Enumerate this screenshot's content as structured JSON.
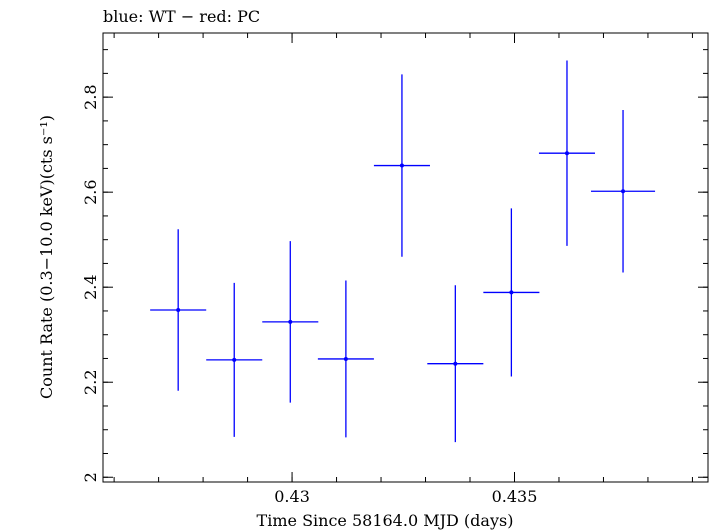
{
  "chart_data": {
    "type": "scatter",
    "title": "blue: WT − red: PC",
    "xlabel": "Time Since 58164.0 MJD (days)",
    "ylabel": "Count Rate (0.3−10.0 keV)(cts s⁻¹)",
    "xlim": [
      0.42575,
      0.43935
    ],
    "ylim": [
      1.99,
      2.935
    ],
    "xticks": [
      {
        "value": 0.43,
        "label": "0.43"
      },
      {
        "value": 0.435,
        "label": "0.435"
      }
    ],
    "yticks": [
      {
        "value": 2.0,
        "label": "2"
      },
      {
        "value": 2.2,
        "label": "2.2"
      },
      {
        "value": 2.4,
        "label": "2.4"
      },
      {
        "value": 2.6,
        "label": "2.6"
      },
      {
        "value": 2.8,
        "label": "2.8"
      }
    ],
    "x_minor_step": 0.001,
    "y_minor_step": 0.05,
    "grid": false,
    "series": [
      {
        "color": "#0000ff",
        "points": [
          {
            "x": 0.42744,
            "xerr": 0.00063,
            "y": 2.352,
            "yerr": 0.17
          },
          {
            "x": 0.4287,
            "xerr": 0.00063,
            "y": 2.247,
            "yerr": 0.162
          },
          {
            "x": 0.42996,
            "xerr": 0.00063,
            "y": 2.327,
            "yerr": 0.17
          },
          {
            "x": 0.43121,
            "xerr": 0.00063,
            "y": 2.249,
            "yerr": 0.165
          },
          {
            "x": 0.43247,
            "xerr": 0.00063,
            "y": 2.656,
            "yerr": 0.192
          },
          {
            "x": 0.43367,
            "xerr": 0.00063,
            "y": 2.239,
            "yerr": 0.165
          },
          {
            "x": 0.43493,
            "xerr": 0.00063,
            "y": 2.389,
            "yerr": 0.177
          },
          {
            "x": 0.43618,
            "xerr": 0.00063,
            "y": 2.682,
            "yerr": 0.195
          },
          {
            "x": 0.43744,
            "xerr": 0.00072,
            "y": 2.602,
            "yerr": 0.171
          }
        ]
      }
    ]
  }
}
